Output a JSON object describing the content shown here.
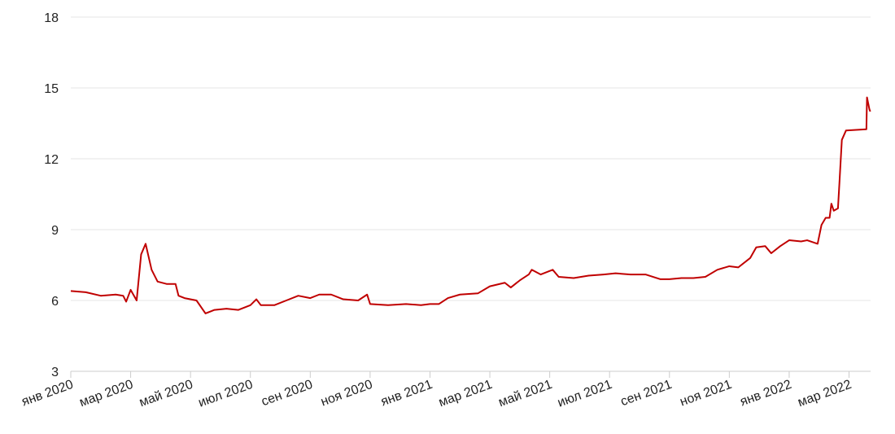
{
  "chart_data": {
    "type": "line",
    "x": [
      0,
      0.5,
      1,
      1.5,
      1.75,
      1.85,
      2.0,
      2.2,
      2.35,
      2.5,
      2.7,
      2.9,
      3.2,
      3.5,
      3.6,
      3.8,
      4.2,
      4.5,
      4.8,
      5.2,
      5.6,
      6.0,
      6.2,
      6.35,
      6.8,
      7.2,
      7.6,
      8.0,
      8.3,
      8.7,
      9.1,
      9.6,
      9.9,
      10.0,
      10.6,
      11.2,
      11.7,
      12.0,
      12.3,
      12.6,
      13.0,
      13.6,
      14.0,
      14.5,
      14.7,
      15.0,
      15.3,
      15.4,
      15.7,
      16.1,
      16.3,
      16.8,
      17.3,
      17.8,
      18.2,
      18.7,
      19.2,
      19.7,
      20.0,
      20.4,
      20.8,
      21.2,
      21.6,
      22.0,
      22.3,
      22.7,
      22.9,
      23.2,
      23.4,
      23.7,
      24.0,
      24.4,
      24.6,
      24.95,
      25.08,
      25.22,
      25.35,
      25.41,
      25.49,
      25.63,
      25.68,
      25.76,
      25.9,
      26.58,
      26.6,
      26.68,
      26.71
    ],
    "series": [
      {
        "color": "#c00000",
        "values": [
          6.4,
          6.35,
          6.2,
          6.25,
          6.2,
          5.95,
          6.45,
          6.0,
          7.95,
          8.4,
          7.3,
          6.8,
          6.7,
          6.7,
          6.2,
          6.1,
          6.0,
          5.45,
          5.6,
          5.65,
          5.6,
          5.8,
          6.05,
          5.8,
          5.8,
          6.0,
          6.2,
          6.1,
          6.25,
          6.25,
          6.05,
          6.0,
          6.25,
          5.85,
          5.8,
          5.85,
          5.8,
          5.85,
          5.85,
          6.1,
          6.25,
          6.3,
          6.6,
          6.75,
          6.55,
          6.85,
          7.1,
          7.3,
          7.1,
          7.3,
          7.0,
          6.95,
          7.05,
          7.1,
          7.15,
          7.1,
          7.1,
          6.9,
          6.9,
          6.95,
          6.95,
          7.0,
          7.3,
          7.45,
          7.4,
          7.8,
          8.25,
          8.3,
          8.0,
          8.3,
          8.55,
          8.5,
          8.55,
          8.4,
          9.2,
          9.5,
          9.5,
          10.1,
          9.8,
          9.9,
          11.0,
          12.8,
          13.2,
          13.25,
          14.6,
          14.1,
          14.0
        ]
      }
    ],
    "xlim": [
      0,
      26.72
    ],
    "xticks": [
      {
        "value": 0,
        "label": "янв 2020"
      },
      {
        "value": 2,
        "label": "мар 2020"
      },
      {
        "value": 4,
        "label": "май 2020"
      },
      {
        "value": 6,
        "label": "июл 2020"
      },
      {
        "value": 8,
        "label": "сен 2020"
      },
      {
        "value": 10,
        "label": "ноя 2020"
      },
      {
        "value": 12,
        "label": "янв 2021"
      },
      {
        "value": 14,
        "label": "мар 2021"
      },
      {
        "value": 16,
        "label": "май 2021"
      },
      {
        "value": 18,
        "label": "июл 2021"
      },
      {
        "value": 20,
        "label": "сен 2021"
      },
      {
        "value": 22,
        "label": "ноя 2021"
      },
      {
        "value": 24,
        "label": "янв 2022"
      },
      {
        "value": 26,
        "label": "мар 2022"
      }
    ],
    "ylim": [
      3,
      18
    ],
    "yticks": [
      3,
      6,
      9,
      12,
      15,
      18
    ],
    "grid": true
  }
}
